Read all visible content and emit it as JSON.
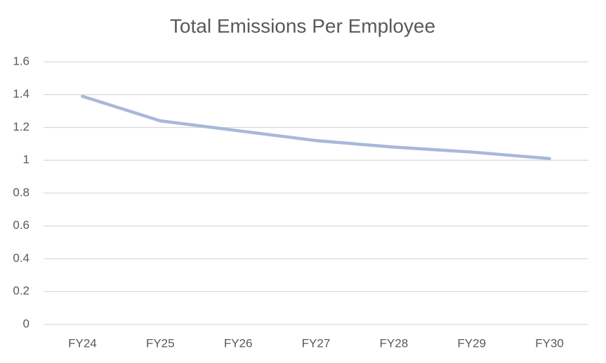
{
  "chart_data": {
    "type": "line",
    "title": "Total Emissions Per Employee",
    "categories": [
      "FY24",
      "FY25",
      "FY26",
      "FY27",
      "FY28",
      "FY29",
      "FY30"
    ],
    "values": [
      1.39,
      1.24,
      1.18,
      1.12,
      1.08,
      1.05,
      1.01
    ],
    "color": "#a9b8d9",
    "ylim": [
      0,
      1.6
    ],
    "yticks": [
      0,
      0.2,
      0.4,
      0.6,
      0.8,
      1,
      1.2,
      1.4,
      1.6
    ],
    "grid": true
  }
}
